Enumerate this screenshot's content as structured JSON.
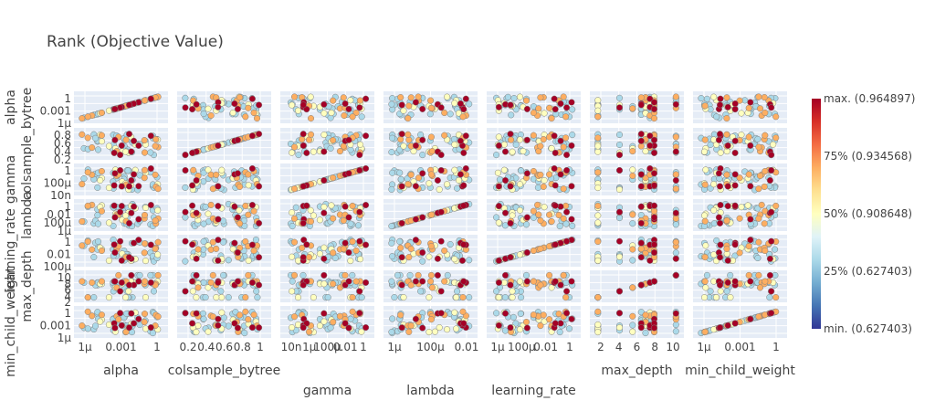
{
  "chart_data": {
    "type": "scatter",
    "title": "Rank (Objective Value)",
    "params": [
      "alpha",
      "colsample_bytree",
      "gamma",
      "lambda",
      "learning_rate",
      "max_depth",
      "min_child_weight"
    ],
    "axis_ticks": {
      "alpha": [
        "1μ",
        "0.001",
        "1"
      ],
      "colsample_bytree": [
        "0.2",
        "0.4",
        "0.6",
        "0.8",
        "1"
      ],
      "gamma": [
        "10n",
        "1μ",
        "100μ",
        "0.01",
        "1"
      ],
      "lambda": [
        "1μ",
        "100μ",
        "0.01"
      ],
      "learning_rate": [
        "1μ",
        "100μ",
        "0.01",
        "1"
      ],
      "max_depth": [
        "2",
        "4",
        "6",
        "8",
        "10"
      ],
      "min_child_weight": [
        "1μ",
        "0.001",
        "1"
      ]
    },
    "y_ticks": {
      "alpha": [
        "1",
        "0.001",
        "1μ"
      ],
      "colsample_bytree": [
        "0.8",
        "0.6",
        "0.4",
        "0.2"
      ],
      "gamma": [
        "1",
        "100μ",
        "10n"
      ],
      "lambda": [
        "1",
        "0.01",
        "100μ",
        "1μ"
      ],
      "learning_rate": [
        "1",
        "0.01",
        "100μ"
      ],
      "max_depth": [
        "10",
        "8",
        "6",
        "4",
        "2"
      ],
      "min_child_weight": [
        "1",
        "0.001",
        "1μ"
      ]
    },
    "colorbar": {
      "labels": [
        "max. (0.964897)",
        "75% (0.934568)",
        "50% (0.908648)",
        "25% (0.627403)",
        "min. (0.627403)"
      ],
      "colorscale": [
        "#313695",
        "#4575b4",
        "#74add1",
        "#abd9e9",
        "#e0f3f8",
        "#ffffbf",
        "#fee090",
        "#fdae61",
        "#f46d43",
        "#d73027",
        "#a50026"
      ]
    },
    "background_color": "#e5ecf6",
    "grid": true
  }
}
